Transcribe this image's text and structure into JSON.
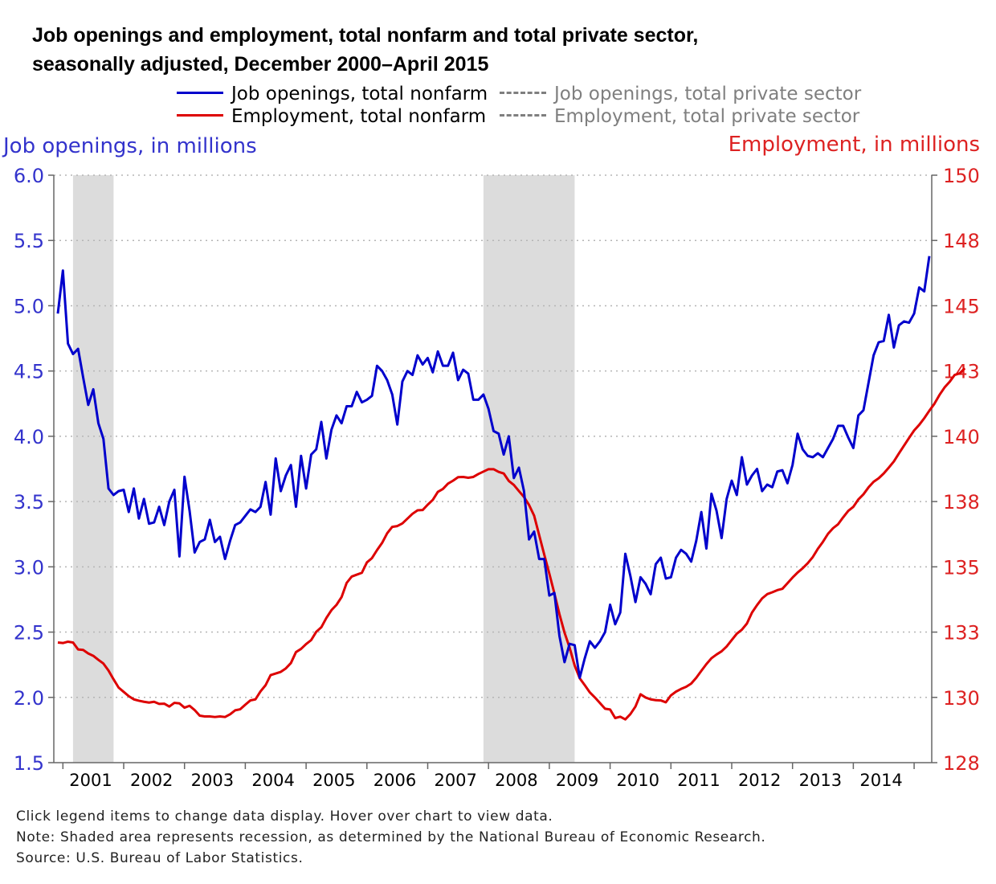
{
  "title_line1": "Job openings and employment, total nonfarm and total private sector,",
  "title_line2": "seasonally adjusted, December 2000–April 2015",
  "legend": [
    {
      "label": "Job openings, total nonfarm",
      "color": "#0000cc",
      "style": "solid",
      "active": true
    },
    {
      "label": "Job openings, total private sector",
      "color": "#7f7f7f",
      "style": "dashed",
      "active": false
    },
    {
      "label": "Employment, total nonfarm",
      "color": "#dd0000",
      "style": "solid",
      "active": true
    },
    {
      "label": "Employment, total private sector",
      "color": "#7f7f7f",
      "style": "dashed",
      "active": false
    }
  ],
  "notes": {
    "line1": "Click legend items to change data display. Hover over chart to view data.",
    "line2": "Note: Shaded area represents recession, as determined by the National Bureau of Economic Research.",
    "line3": "Source: U.S. Bureau of Labor Statistics."
  },
  "colors": {
    "job_openings": "#0000cc",
    "employment": "#dd0000",
    "recession": "#dcdcdc",
    "grid": "#b5b5b5"
  },
  "chart_data": {
    "type": "line",
    "xlabel": "",
    "x_start": "2000-12",
    "x_end": "2015-04",
    "x_tick_labels": [
      "2001",
      "2002",
      "2003",
      "2004",
      "2005",
      "2006",
      "2007",
      "2008",
      "2009",
      "2010",
      "2011",
      "2012",
      "2013",
      "2014"
    ],
    "y_left": {
      "label": "Job openings, in millions",
      "range": [
        1.5,
        6.0
      ],
      "ticks": [
        "1.5",
        "2.0",
        "2.5",
        "3.0",
        "3.5",
        "4.0",
        "4.5",
        "5.0",
        "5.5",
        "6.0"
      ],
      "color": "#3333cc"
    },
    "y_right": {
      "label": "Employment, in millions",
      "range": [
        128,
        150
      ],
      "ticks": [
        "128",
        "130",
        "133",
        "135",
        "138",
        "140",
        "143",
        "145",
        "148",
        "150"
      ],
      "color": "#dd2222"
    },
    "grid": "horizontal dotted",
    "recessions": [
      [
        "2001-03",
        "2001-11"
      ],
      [
        "2007-12",
        "2009-06"
      ]
    ],
    "series": [
      {
        "name": "Job openings, total nonfarm",
        "axis": "left",
        "values": [
          4.94,
          5.27,
          4.71,
          4.63,
          4.67,
          4.45,
          4.24,
          4.36,
          4.1,
          3.98,
          3.6,
          3.55,
          3.58,
          3.59,
          3.42,
          3.6,
          3.37,
          3.52,
          3.33,
          3.34,
          3.46,
          3.32,
          3.5,
          3.59,
          3.08,
          3.69,
          3.43,
          3.11,
          3.19,
          3.21,
          3.36,
          3.19,
          3.23,
          3.06,
          3.2,
          3.32,
          3.34,
          3.39,
          3.44,
          3.42,
          3.46,
          3.65,
          3.4,
          3.83,
          3.58,
          3.7,
          3.78,
          3.46,
          3.85,
          3.6,
          3.86,
          3.9,
          4.11,
          3.83,
          4.05,
          4.16,
          4.1,
          4.23,
          4.23,
          4.34,
          4.26,
          4.28,
          4.31,
          4.54,
          4.5,
          4.43,
          4.32,
          4.09,
          4.42,
          4.5,
          4.47,
          4.62,
          4.55,
          4.6,
          4.49,
          4.65,
          4.54,
          4.54,
          4.64,
          4.43,
          4.51,
          4.48,
          4.28,
          4.28,
          4.32,
          4.21,
          4.04,
          4.02,
          3.86,
          4.0,
          3.68,
          3.76,
          3.58,
          3.21,
          3.27,
          3.06,
          3.06,
          2.78,
          2.8,
          2.47,
          2.27,
          2.41,
          2.4,
          2.15,
          2.3,
          2.43,
          2.38,
          2.43,
          2.5,
          2.71,
          2.56,
          2.65,
          3.1,
          2.93,
          2.73,
          2.92,
          2.87,
          2.79,
          3.02,
          3.07,
          2.91,
          2.92,
          3.07,
          3.13,
          3.1,
          3.04,
          3.2,
          3.42,
          3.14,
          3.56,
          3.43,
          3.22,
          3.52,
          3.66,
          3.55,
          3.84,
          3.63,
          3.7,
          3.75,
          3.58,
          3.63,
          3.61,
          3.73,
          3.74,
          3.64,
          3.78,
          4.02,
          3.9,
          3.85,
          3.84,
          3.87,
          3.84,
          3.91,
          3.98,
          4.08,
          4.08,
          3.99,
          3.91,
          4.16,
          4.2,
          4.41,
          4.62,
          4.72,
          4.73,
          4.93,
          4.68,
          4.85,
          4.88,
          4.87,
          4.94,
          5.14,
          5.11,
          5.38
        ]
      },
      {
        "name": "Employment, total nonfarm",
        "axis": "right",
        "values": [
          132.5,
          132.48,
          132.53,
          132.5,
          132.24,
          132.22,
          132.09,
          132.0,
          131.85,
          131.71,
          131.45,
          131.12,
          130.81,
          130.65,
          130.49,
          130.37,
          130.32,
          130.28,
          130.25,
          130.28,
          130.2,
          130.21,
          130.1,
          130.24,
          130.22,
          130.06,
          130.13,
          129.97,
          129.76,
          129.73,
          129.73,
          129.71,
          129.73,
          129.71,
          129.81,
          129.96,
          130.0,
          130.17,
          130.33,
          130.37,
          130.67,
          130.9,
          131.28,
          131.34,
          131.4,
          131.53,
          131.73,
          132.14,
          132.26,
          132.44,
          132.59,
          132.9,
          133.07,
          133.42,
          133.71,
          133.91,
          134.2,
          134.73,
          134.97,
          135.04,
          135.11,
          135.5,
          135.66,
          135.96,
          136.23,
          136.59,
          136.83,
          136.86,
          136.96,
          137.14,
          137.32,
          137.45,
          137.46,
          137.66,
          137.84,
          138.14,
          138.25,
          138.45,
          138.56,
          138.69,
          138.7,
          138.67,
          138.7,
          138.81,
          138.9,
          138.99,
          138.99,
          138.89,
          138.83,
          138.55,
          138.4,
          138.17,
          137.95,
          137.65,
          137.25,
          136.52,
          135.79,
          135.08,
          134.34,
          133.56,
          132.87,
          132.31,
          131.64,
          131.16,
          130.9,
          130.63,
          130.44,
          130.23,
          130.02,
          129.99,
          129.67,
          129.72,
          129.62,
          129.82,
          130.1,
          130.56,
          130.44,
          130.37,
          130.34,
          130.33,
          130.26,
          130.52,
          130.66,
          130.76,
          130.84,
          130.96,
          131.18,
          131.44,
          131.69,
          131.91,
          132.05,
          132.17,
          132.35,
          132.59,
          132.83,
          132.98,
          133.21,
          133.62,
          133.9,
          134.15,
          134.31,
          134.38,
          134.46,
          134.51,
          134.72,
          134.93,
          135.12,
          135.28,
          135.47,
          135.7,
          136.01,
          136.27,
          136.57,
          136.78,
          136.93,
          137.19,
          137.43,
          137.58,
          137.86,
          138.05,
          138.31,
          138.52,
          138.65,
          138.83,
          139.05,
          139.28,
          139.58,
          139.87,
          140.16,
          140.44,
          140.65,
          140.9,
          141.18,
          141.44,
          141.77,
          142.05,
          142.26,
          142.52,
          142.58,
          142.77
        ]
      }
    ]
  }
}
